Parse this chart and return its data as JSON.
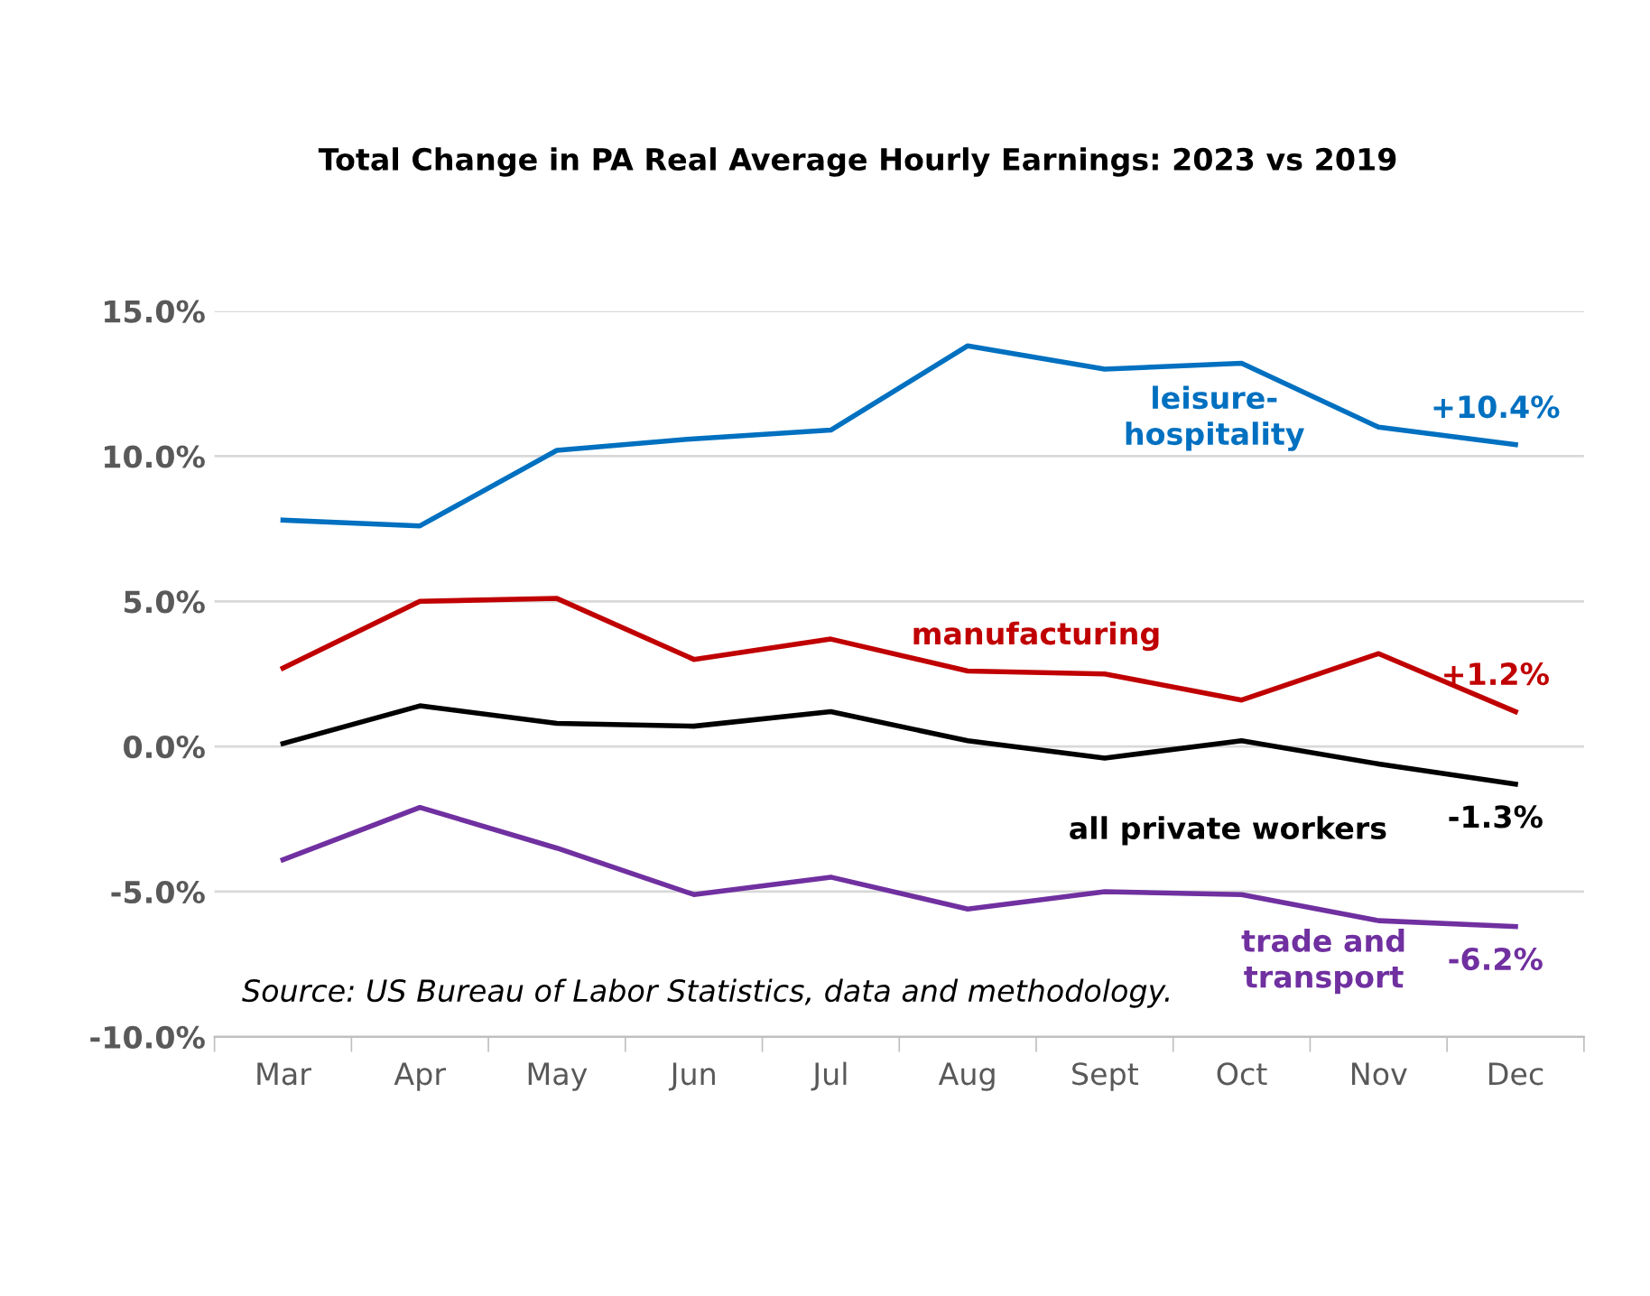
{
  "chart_data": {
    "type": "line",
    "title": "Total Change in PA Real Average Hourly Earnings: 2023 vs 2019",
    "categories": [
      "Mar",
      "Apr",
      "May",
      "Jun",
      "Jul",
      "Aug",
      "Sept",
      "Oct",
      "Nov",
      "Dec"
    ],
    "series": [
      {
        "name": "leisure-\nhospitality",
        "color": "#0070c0",
        "values": [
          7.8,
          7.6,
          10.2,
          10.6,
          10.9,
          13.8,
          13.0,
          13.2,
          11.0,
          10.4
        ],
        "value_labels": [
          null,
          null,
          null,
          null,
          null,
          null,
          null,
          null,
          null,
          "+10.4%"
        ]
      },
      {
        "name": "manufacturing",
        "color": "#c00000",
        "values": [
          2.7,
          5.0,
          5.1,
          3.0,
          3.7,
          2.6,
          2.5,
          1.6,
          3.2,
          1.2
        ],
        "value_labels": [
          null,
          null,
          null,
          null,
          null,
          null,
          null,
          null,
          null,
          "+1.2%"
        ]
      },
      {
        "name": "all private workers",
        "color": "#000000",
        "values": [
          0.1,
          1.4,
          0.8,
          0.7,
          1.2,
          0.2,
          -0.4,
          0.2,
          -0.6,
          -1.3
        ],
        "value_labels": [
          null,
          null,
          null,
          null,
          null,
          null,
          null,
          null,
          null,
          "-1.3%"
        ]
      },
      {
        "name": "trade and\ntransport",
        "color": "#7030a0",
        "values": [
          -3.9,
          -2.1,
          -3.5,
          -5.1,
          -4.5,
          -5.6,
          -5.0,
          -5.1,
          -6.0,
          -6.2
        ],
        "value_labels": [
          null,
          null,
          null,
          null,
          null,
          null,
          null,
          null,
          null,
          "-6.2%"
        ]
      }
    ],
    "ylim": [
      -10,
      15
    ],
    "yticks": [
      {
        "value": -10,
        "label": "-10.0%"
      },
      {
        "value": -5,
        "label": "-5.0%"
      },
      {
        "value": 0,
        "label": "0.0%"
      },
      {
        "value": 5,
        "label": "5.0%"
      },
      {
        "value": 10,
        "label": "10.0%"
      },
      {
        "value": 15,
        "label": "15.0%"
      }
    ],
    "grid": "y",
    "legend": false,
    "marker": "none",
    "line_style": "solid",
    "annotations": [
      "Source: US Bureau of Labor Statistics, data and methodology."
    ]
  }
}
